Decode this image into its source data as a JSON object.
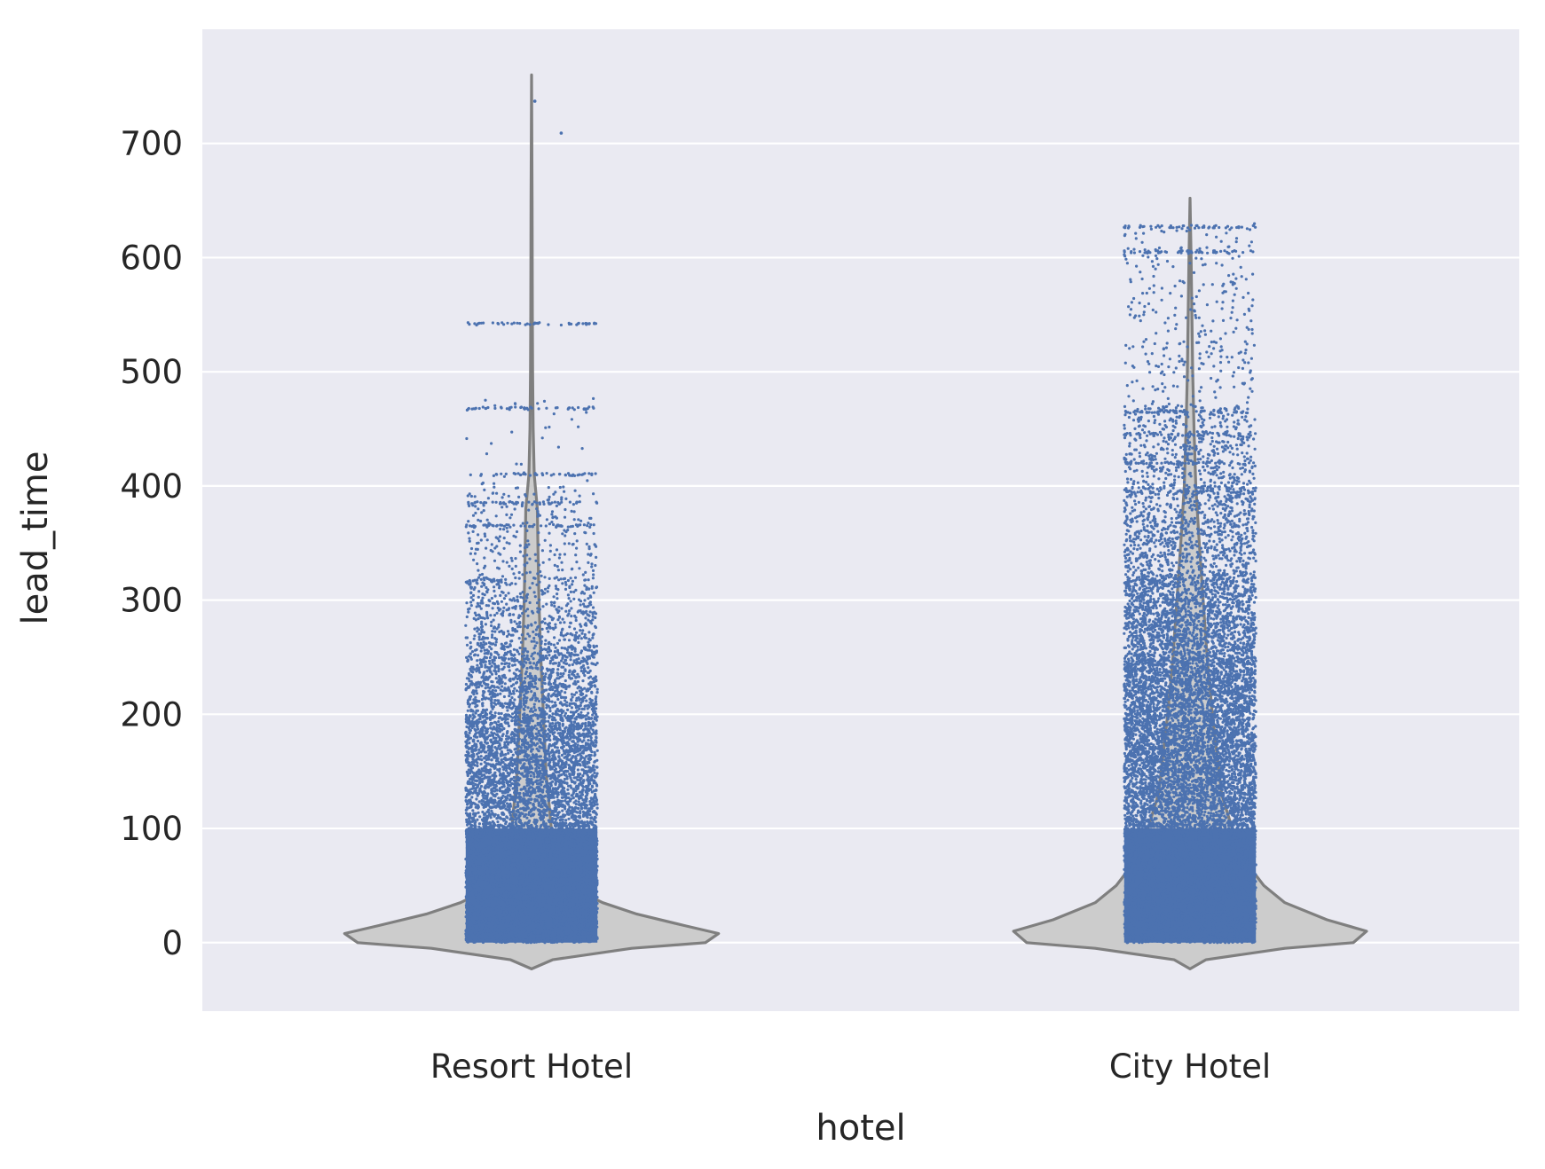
{
  "chart_data": {
    "type": "violin",
    "title": "",
    "xlabel": "hotel",
    "ylabel": "lead_time",
    "categories": [
      "Resort Hotel",
      "City Hotel"
    ],
    "ylim": [
      -60,
      800
    ],
    "yticks": [
      0,
      100,
      200,
      300,
      400,
      500,
      600,
      700
    ],
    "grid": true,
    "style": {
      "plot_background": "#eaeaf2",
      "grid_color": "#ffffff",
      "violin_fill": "#cccccc",
      "violin_edge": "#7f7f7f",
      "point_color": "#4c72b0"
    },
    "series": [
      {
        "name": "Resort Hotel",
        "max": 737,
        "kde_top": 760,
        "kde_bottom": -23,
        "density_profile": [
          {
            "y": -23,
            "w": 0.0
          },
          {
            "y": -15,
            "w": 0.08
          },
          {
            "y": -5,
            "w": 0.38
          },
          {
            "y": 0,
            "w": 0.66
          },
          {
            "y": 8,
            "w": 0.71
          },
          {
            "y": 15,
            "w": 0.58
          },
          {
            "y": 25,
            "w": 0.4
          },
          {
            "y": 35,
            "w": 0.27
          },
          {
            "y": 45,
            "w": 0.18
          },
          {
            "y": 60,
            "w": 0.12
          },
          {
            "y": 80,
            "w": 0.09
          },
          {
            "y": 100,
            "w": 0.075
          },
          {
            "y": 150,
            "w": 0.055
          },
          {
            "y": 200,
            "w": 0.045
          },
          {
            "y": 250,
            "w": 0.035
          },
          {
            "y": 300,
            "w": 0.028
          },
          {
            "y": 350,
            "w": 0.024
          },
          {
            "y": 380,
            "w": 0.022
          },
          {
            "y": 410,
            "w": 0.01
          },
          {
            "y": 450,
            "w": 0.006
          },
          {
            "y": 500,
            "w": 0.004
          },
          {
            "y": 550,
            "w": 0.003
          },
          {
            "y": 650,
            "w": 0.002
          },
          {
            "y": 760,
            "w": 0.0
          }
        ],
        "point_bands": [
          {
            "from": 0,
            "to": 100,
            "density": 1.0
          },
          {
            "from": 100,
            "to": 200,
            "density": 0.75
          },
          {
            "from": 200,
            "to": 260,
            "density": 0.45
          },
          {
            "from": 260,
            "to": 320,
            "density": 0.22
          },
          {
            "from": 320,
            "to": 400,
            "density": 0.08
          },
          {
            "from": 400,
            "to": 480,
            "density": 0.01
          }
        ],
        "point_lines": [
          365,
          385,
          410,
          468,
          542
        ],
        "outliers": [
          709,
          737
        ]
      },
      {
        "name": "City Hotel",
        "max": 629,
        "kde_top": 652,
        "kde_bottom": -23,
        "density_profile": [
          {
            "y": -23,
            "w": 0.0
          },
          {
            "y": -15,
            "w": 0.06
          },
          {
            "y": -5,
            "w": 0.36
          },
          {
            "y": 0,
            "w": 0.62
          },
          {
            "y": 10,
            "w": 0.67
          },
          {
            "y": 20,
            "w": 0.52
          },
          {
            "y": 35,
            "w": 0.36
          },
          {
            "y": 50,
            "w": 0.28
          },
          {
            "y": 65,
            "w": 0.23
          },
          {
            "y": 80,
            "w": 0.19
          },
          {
            "y": 100,
            "w": 0.16
          },
          {
            "y": 130,
            "w": 0.12
          },
          {
            "y": 200,
            "w": 0.085
          },
          {
            "y": 250,
            "w": 0.065
          },
          {
            "y": 300,
            "w": 0.05
          },
          {
            "y": 350,
            "w": 0.035
          },
          {
            "y": 400,
            "w": 0.022
          },
          {
            "y": 450,
            "w": 0.015
          },
          {
            "y": 500,
            "w": 0.01
          },
          {
            "y": 550,
            "w": 0.007
          },
          {
            "y": 600,
            "w": 0.004
          },
          {
            "y": 652,
            "w": 0.0
          }
        ],
        "point_bands": [
          {
            "from": 0,
            "to": 100,
            "density": 1.0
          },
          {
            "from": 100,
            "to": 250,
            "density": 0.9
          },
          {
            "from": 250,
            "to": 320,
            "density": 0.6
          },
          {
            "from": 320,
            "to": 400,
            "density": 0.3
          },
          {
            "from": 400,
            "to": 470,
            "density": 0.18
          },
          {
            "from": 470,
            "to": 630,
            "density": 0.05
          }
        ],
        "point_lines": [
          395,
          420,
          445,
          465,
          605,
          627
        ],
        "outliers": []
      }
    ]
  }
}
